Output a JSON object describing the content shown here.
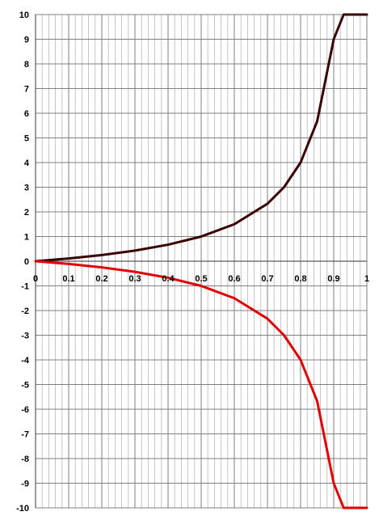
{
  "chart_data": {
    "type": "line",
    "title": "",
    "xlabel": "",
    "ylabel": "",
    "xlim": [
      0,
      1
    ],
    "ylim": [
      -10,
      10
    ],
    "x_ticks": [
      "0",
      "0.1",
      "0.2",
      "0.3",
      "0.4",
      "0.5",
      "0.6",
      "0.7",
      "0.8",
      "0.9",
      "1"
    ],
    "y_ticks": [
      "10",
      "9",
      "8",
      "7",
      "6",
      "5",
      "4",
      "3",
      "2",
      "1",
      "0",
      "-1",
      "-2",
      "-3",
      "-4",
      "-5",
      "-6",
      "-7",
      "-8",
      "-9",
      "-10"
    ],
    "grid": true,
    "legend": "none",
    "series": [
      {
        "color": "#3a0000",
        "x": [
          0,
          0.1,
          0.2,
          0.3,
          0.4,
          0.5,
          0.6,
          0.7,
          0.75,
          0.8,
          0.85,
          0.9,
          0.93,
          0.95,
          0.97,
          0.98,
          0.99,
          1.0
        ],
        "y": [
          0,
          0.11,
          0.25,
          0.43,
          0.67,
          1.0,
          1.5,
          2.33,
          3.0,
          4.0,
          5.67,
          9.0,
          10.0,
          10.0,
          10.0,
          10.0,
          10.0,
          10.0
        ]
      },
      {
        "color": "#e00000",
        "x": [
          0,
          0.1,
          0.2,
          0.3,
          0.4,
          0.5,
          0.6,
          0.7,
          0.75,
          0.8,
          0.85,
          0.9,
          0.93,
          0.95,
          0.97,
          0.98,
          0.99,
          1.0
        ],
        "y": [
          0,
          -0.11,
          -0.25,
          -0.43,
          -0.67,
          -1.0,
          -1.5,
          -2.33,
          -3.0,
          -4.0,
          -5.67,
          -9.0,
          -10.0,
          -10.0,
          -10.0,
          -10.0,
          -10.0,
          -10.0
        ]
      }
    ]
  }
}
